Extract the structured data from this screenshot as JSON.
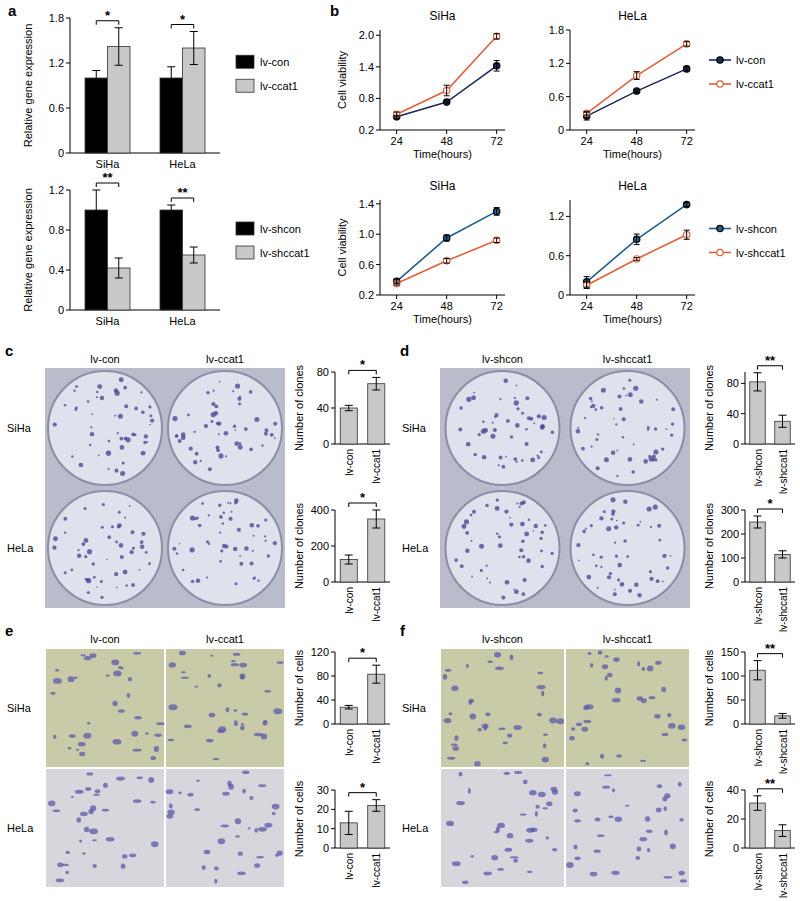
{
  "chart_data": [
    {
      "type": "bar",
      "panel": "a",
      "categories": [
        "SiHa",
        "HeLa"
      ],
      "y_label": "Relative gene expression",
      "ylim": [
        0,
        1.8
      ],
      "yticks": [
        0,
        0.6,
        1.2,
        1.8
      ],
      "legend": "right",
      "series": [
        {
          "name": "lv-con",
          "color": "#000000",
          "values": [
            1,
            1
          ],
          "errors": [
            0.1,
            0.15
          ]
        },
        {
          "name": "lv-ccat1",
          "color": "#c8c8c8",
          "values": [
            1.42,
            1.4
          ],
          "errors": [
            0.25,
            0.22
          ]
        }
      ],
      "significance": [
        "*",
        "*"
      ]
    },
    {
      "type": "bar",
      "categories": [
        "SiHa",
        "HeLa"
      ],
      "y_label": "Relative gene expression",
      "ylim": [
        0,
        1.2
      ],
      "yticks": [
        0,
        0.4,
        0.8,
        1.2
      ],
      "legend": "right",
      "series": [
        {
          "name": "lv-shcon",
          "color": "#000000",
          "values": [
            1,
            1
          ],
          "errors": [
            0.2,
            0.05
          ]
        },
        {
          "name": "lv-shccat1",
          "color": "#c8c8c8",
          "values": [
            0.42,
            0.55
          ],
          "errors": [
            0.1,
            0.08
          ]
        }
      ],
      "significance": [
        "**",
        "**"
      ]
    },
    {
      "type": "line",
      "panel": "b",
      "title": "SiHa",
      "x": [
        24,
        48,
        72
      ],
      "xlim": [
        16,
        76
      ],
      "xticks": [
        24,
        48,
        72
      ],
      "x_label": "Time(hours)",
      "y_label": "Cell viability",
      "ylim": [
        0.2,
        2.1
      ],
      "yticks": [
        0.2,
        0.8,
        1.4,
        {
          "value": 2,
          "label": "2.0"
        }
      ],
      "legend": "none",
      "series": [
        {
          "name": "lv-con",
          "color": "#1a2a55",
          "marker": "filled",
          "values": [
            0.45,
            0.73,
            1.42
          ],
          "errors": [
            0.03,
            0.02,
            0.1
          ]
        },
        {
          "name": "lv-ccat1",
          "color": "#e0603a",
          "marker": "open",
          "values": [
            0.5,
            0.95,
            1.98
          ],
          "errors": [
            0.04,
            0.1,
            0.05
          ]
        }
      ]
    },
    {
      "type": "line",
      "title": "HeLa",
      "x": [
        24,
        48,
        72
      ],
      "xlim": [
        16,
        76
      ],
      "xticks": [
        24,
        48,
        72
      ],
      "x_label": "Time(hours)",
      "ylim": [
        0,
        1.8
      ],
      "yticks": [
        0,
        0.6,
        1.2,
        1.8
      ],
      "legend": "right",
      "series": [
        {
          "name": "lv-con",
          "color": "#1a2a55",
          "marker": "filled",
          "values": [
            0.25,
            0.7,
            1.1
          ],
          "errors": [
            0.07,
            0.02,
            0.04
          ]
        },
        {
          "name": "lv-ccat1",
          "color": "#e0603a",
          "marker": "open",
          "values": [
            0.3,
            0.98,
            1.55
          ],
          "errors": [
            0.03,
            0.07,
            0.04
          ]
        }
      ]
    },
    {
      "type": "line",
      "title": "SiHa",
      "x": [
        24,
        48,
        72
      ],
      "xlim": [
        16,
        76
      ],
      "xticks": [
        24,
        48,
        72
      ],
      "x_label": "Time(hours)",
      "y_label": "Cell viability",
      "ylim": [
        0.2,
        1.45
      ],
      "yticks": [
        0.2,
        0.6,
        {
          "value": 1,
          "label": "1.0"
        },
        1.4
      ],
      "legend": "none",
      "series": [
        {
          "name": "lv-shcon",
          "color": "#1f5f8b",
          "marker": "filled",
          "values": [
            0.38,
            0.95,
            1.3
          ],
          "errors": [
            0.03,
            0.04,
            0.05
          ]
        },
        {
          "name": "lv-shccat1",
          "color": "#e0603a",
          "marker": "open",
          "values": [
            0.35,
            0.65,
            0.92
          ],
          "errors": [
            0.02,
            0.03,
            0.03
          ]
        }
      ]
    },
    {
      "type": "line",
      "title": "HeLa",
      "x": [
        24,
        48,
        72
      ],
      "xlim": [
        16,
        76
      ],
      "xticks": [
        24,
        48,
        72
      ],
      "x_label": "Time(hours)",
      "ylim": [
        0,
        1.45
      ],
      "yticks": [
        0,
        0.6,
        1.2
      ],
      "legend": "right",
      "series": [
        {
          "name": "lv-shcon",
          "color": "#1f5f8b",
          "marker": "filled",
          "values": [
            0.2,
            0.85,
            1.38
          ],
          "errors": [
            0.08,
            0.08,
            0.03
          ]
        },
        {
          "name": "lv-shccat1",
          "color": "#e0603a",
          "marker": "open",
          "values": [
            0.15,
            0.55,
            0.92
          ],
          "errors": [
            0.05,
            0.02,
            0.07
          ]
        }
      ]
    },
    {
      "type": "dish_photo",
      "panel": "c",
      "columns": [
        "lv-con",
        "lv-ccat1"
      ],
      "rows": [
        "SiHa",
        "HeLa"
      ]
    },
    {
      "type": "bar",
      "categories": [
        "lv-con",
        "lv-ccat1"
      ],
      "values": [
        40,
        67
      ],
      "errors": [
        3,
        7
      ],
      "color": "#c8c8c8",
      "y_label": "Number of clones",
      "ylim": [
        0,
        80
      ],
      "yticks": [
        0,
        40,
        80
      ],
      "significance": "*"
    },
    {
      "type": "bar",
      "categories": [
        "lv-con",
        "lv-ccat1"
      ],
      "values": [
        125,
        350
      ],
      "errors": [
        25,
        50
      ],
      "color": "#c8c8c8",
      "y_label": "Number of clones",
      "ylim": [
        0,
        400
      ],
      "yticks": [
        0,
        200,
        400
      ],
      "significance": "*"
    },
    {
      "type": "dish_photo",
      "panel": "d",
      "columns": [
        "lv-shcon",
        "lv-shccat1"
      ],
      "rows": [
        "SiHa",
        "HeLa"
      ]
    },
    {
      "type": "bar",
      "categories": [
        "lv-shcon",
        "lv-shccat1"
      ],
      "values": [
        82,
        30
      ],
      "errors": [
        12,
        8
      ],
      "color": "#c8c8c8",
      "y_label": "Number of clones",
      "ylim": [
        0,
        95
      ],
      "yticks": [
        0,
        40,
        80
      ],
      "significance": "**"
    },
    {
      "type": "bar",
      "categories": [
        "lv-shcon",
        "lv-shccat1"
      ],
      "values": [
        250,
        115
      ],
      "errors": [
        25,
        15
      ],
      "color": "#c8c8c8",
      "y_label": "Number of clones",
      "ylim": [
        0,
        300
      ],
      "yticks": [
        0,
        100,
        200,
        300
      ],
      "significance": "*"
    },
    {
      "type": "micrograph",
      "panel": "e",
      "columns": [
        "lv-con",
        "lv-ccat1"
      ],
      "rows": [
        "SiHa",
        "HeLa"
      ]
    },
    {
      "type": "bar",
      "categories": [
        "lv-con",
        "lv-ccat1"
      ],
      "values": [
        28,
        83
      ],
      "errors": [
        3,
        15
      ],
      "color": "#c8c8c8",
      "y_label": "Number of cells",
      "ylim": [
        0,
        120
      ],
      "yticks": [
        0,
        40,
        80,
        120
      ],
      "significance": "*"
    },
    {
      "type": "bar",
      "categories": [
        "lv-con",
        "lv-ccat1"
      ],
      "values": [
        13,
        22
      ],
      "errors": [
        6,
        3
      ],
      "color": "#c8c8c8",
      "y_label": "Number of cells",
      "ylim": [
        0,
        30
      ],
      "yticks": [
        0,
        10,
        20,
        30
      ],
      "significance": "*"
    },
    {
      "type": "micrograph",
      "panel": "f",
      "columns": [
        "lv-shcon",
        "lv-shccat1"
      ],
      "rows": [
        "SiHa",
        "HeLa"
      ]
    },
    {
      "type": "bar",
      "categories": [
        "lv-shcon",
        "lv-shccat1"
      ],
      "values": [
        112,
        17
      ],
      "errors": [
        20,
        5
      ],
      "color": "#c8c8c8",
      "y_label": "Number of cells",
      "ylim": [
        0,
        150
      ],
      "yticks": [
        0,
        50,
        100,
        150
      ],
      "significance": "**"
    },
    {
      "type": "bar",
      "categories": [
        "lv-shcon",
        "lv-shccat1"
      ],
      "values": [
        31,
        12
      ],
      "errors": [
        5,
        4
      ],
      "color": "#c8c8c8",
      "y_label": "Number of cells",
      "ylim": [
        0,
        40
      ],
      "yticks": [
        0,
        20,
        40
      ],
      "significance": "**"
    }
  ]
}
